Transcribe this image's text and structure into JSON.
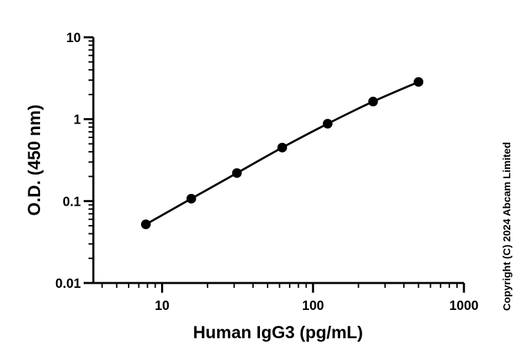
{
  "chart_data": {
    "type": "scatter",
    "title": "",
    "xlabel": "Human IgG3 (pg/mL)",
    "ylabel": "O.D. (450 nm)",
    "x_scale": "log",
    "y_scale": "log",
    "xlim": [
      3.5,
      1000
    ],
    "ylim": [
      0.01,
      10
    ],
    "x_tick_labels": [
      "10",
      "100",
      "1000"
    ],
    "y_tick_labels": [
      "0.01",
      "0.1",
      "1",
      "10"
    ],
    "grid": false,
    "legend": "none",
    "series": [
      {
        "x": [
          7.8,
          15.6,
          31.3,
          62.5,
          125,
          250,
          500
        ],
        "y": [
          0.052,
          0.107,
          0.22,
          0.45,
          0.88,
          1.64,
          2.85
        ]
      }
    ],
    "fit_curve": true,
    "colors": {
      "axis": "#000000",
      "marker": "#000000",
      "line": "#000000",
      "background": "#ffffff"
    }
  },
  "copyright": "Copyright (C) 2024 Abcam Limited"
}
